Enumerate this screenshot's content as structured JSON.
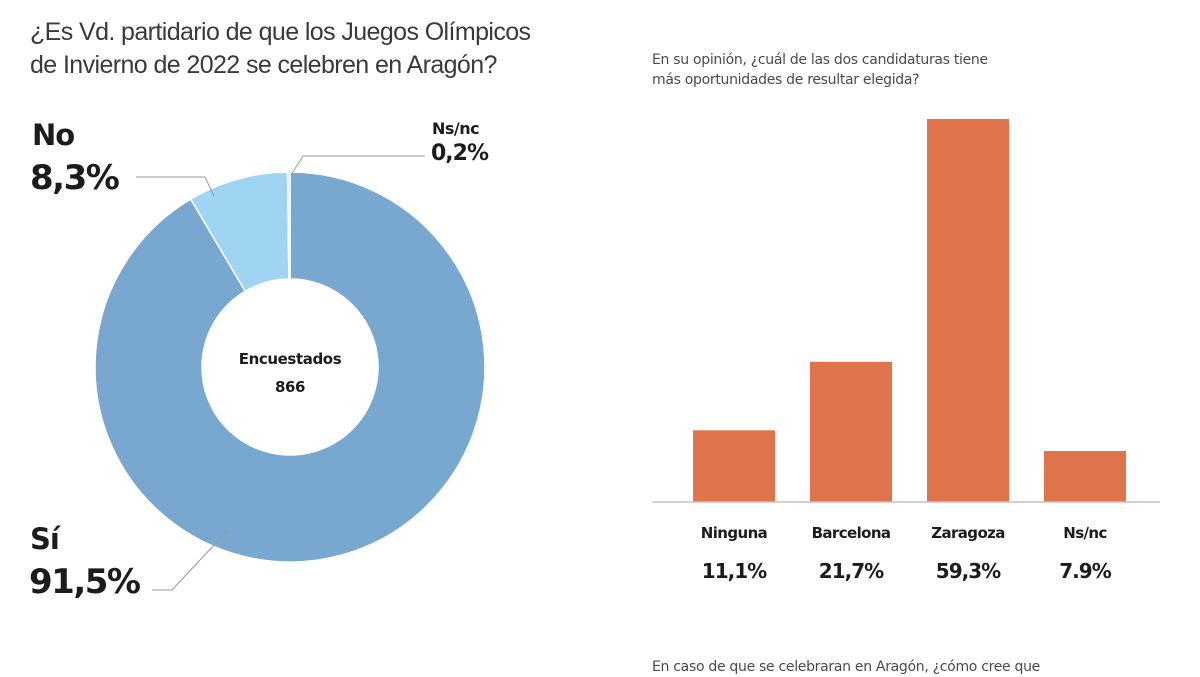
{
  "chart_data": [
    {
      "type": "pie",
      "title": "¿Es Vd. partidario de que los Juegos Olímpicos de Invierno de 2022 se celebren  en Aragón?",
      "center_label": "Encuestados",
      "center_value": "866",
      "slices": [
        {
          "name": "Sí",
          "value": 91.5,
          "label": "91,5%",
          "color": "#78a7d0"
        },
        {
          "name": "No",
          "value": 8.3,
          "label": "8,3%",
          "color": "#9fd4f2"
        },
        {
          "name": "Ns/nc",
          "value": 0.2,
          "label": "0,2%",
          "color": "#d9dee3"
        }
      ]
    },
    {
      "type": "bar",
      "title": "En su opinión, ¿cuál de las dos candidaturas tiene más oportunidades de resultar elegida?",
      "categories": [
        "Ninguna",
        "Barcelona",
        "Zaragoza",
        "Ns/nc"
      ],
      "values": [
        11.1,
        21.7,
        59.3,
        7.9
      ],
      "value_labels": [
        "11,1%",
        "21,7%",
        "59,3%",
        "7.9%"
      ],
      "color": "#df734b",
      "xlabel": "",
      "ylabel": "",
      "ylim": [
        0,
        59.3
      ],
      "grid": false
    }
  ],
  "page": {
    "q1_line1": "¿Es Vd. partidario de que los Juegos Olímpicos",
    "q1_line2": "de Invierno de 2022 se celebren  en Aragón?",
    "q2_line1": "En su opinión, ¿cuál de las dos candidaturas tiene",
    "q2_line2": "más oportunidades de resultar elegida?",
    "q3_line1": "En caso de que se celebraran en Aragón, ¿cómo cree que"
  }
}
